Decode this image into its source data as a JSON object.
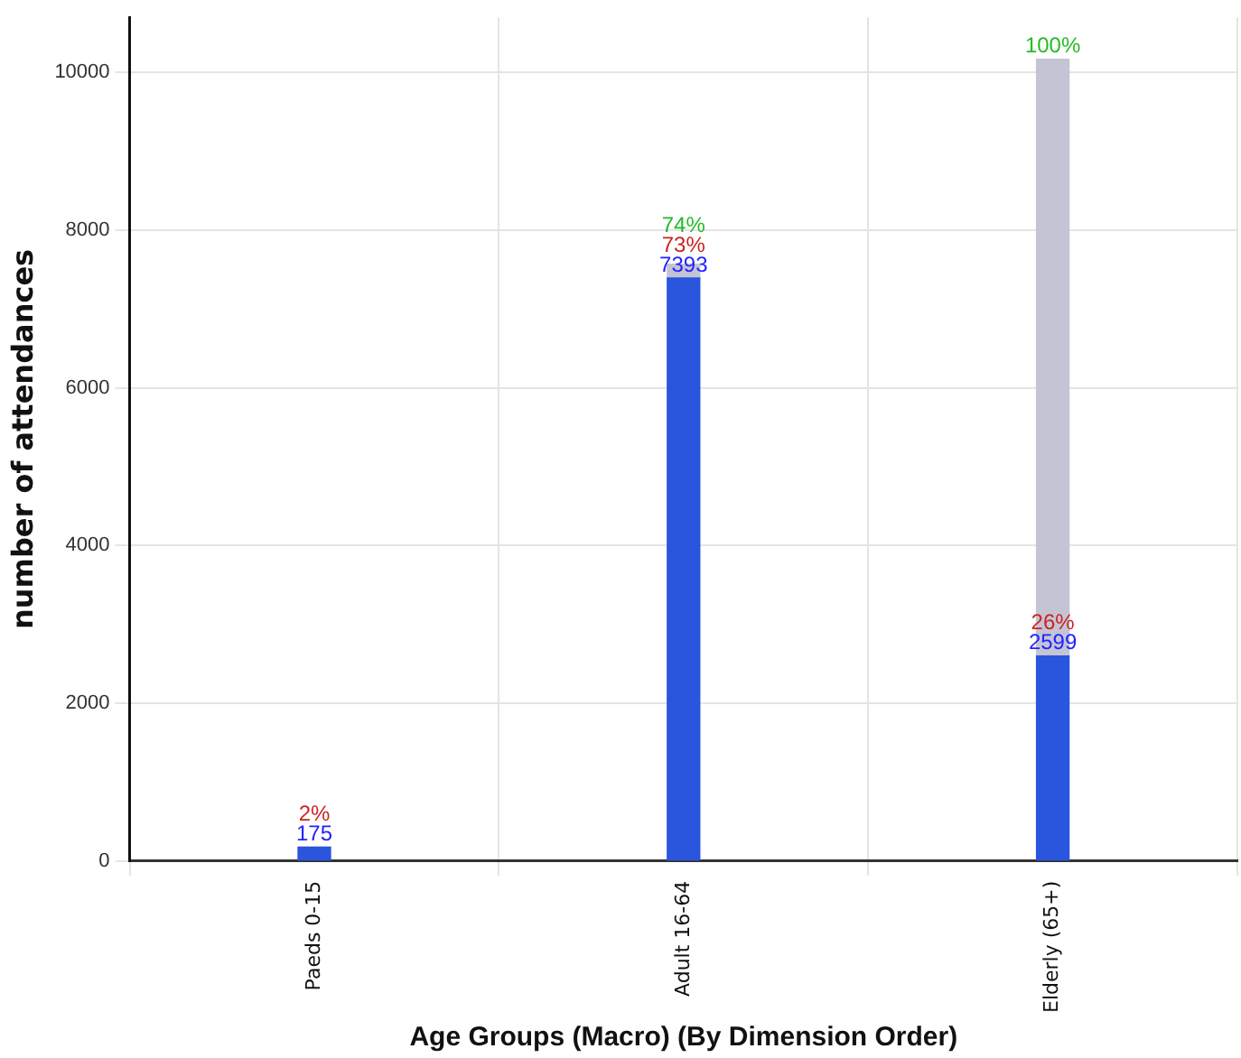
{
  "chart_data": {
    "type": "bar",
    "xlabel": "Age Groups (Macro) (By Dimension Order)",
    "ylabel": "number of attendances",
    "categories": [
      "Paeds 0-15",
      "Adult 16-64",
      "Elderly (65+)"
    ],
    "stacked": true,
    "series": [
      {
        "color": "#2a55dd",
        "values": [
          175,
          7393,
          2599
        ],
        "value_labels": [
          "175",
          "7393",
          "2599"
        ]
      },
      {
        "color": "#c4c4d4",
        "values": [
          0,
          175,
          7568
        ]
      }
    ],
    "annotations": [
      {
        "text": "2%",
        "x": "Paeds 0-15",
        "y": 175
      },
      {
        "text": "73%",
        "x": "Adult 16-64",
        "y": 7393
      },
      {
        "text": "26%",
        "x": "Elderly (65+)",
        "y": 2599
      },
      {
        "text": "74%",
        "x": "Adult 16-64",
        "y": 7568
      },
      {
        "text": "100%",
        "x": "Elderly (65+)",
        "y": 10167
      }
    ],
    "ylim": [
      0,
      10700
    ],
    "yticks": [
      0,
      2000,
      4000,
      6000,
      8000,
      10000
    ],
    "grid": true
  }
}
